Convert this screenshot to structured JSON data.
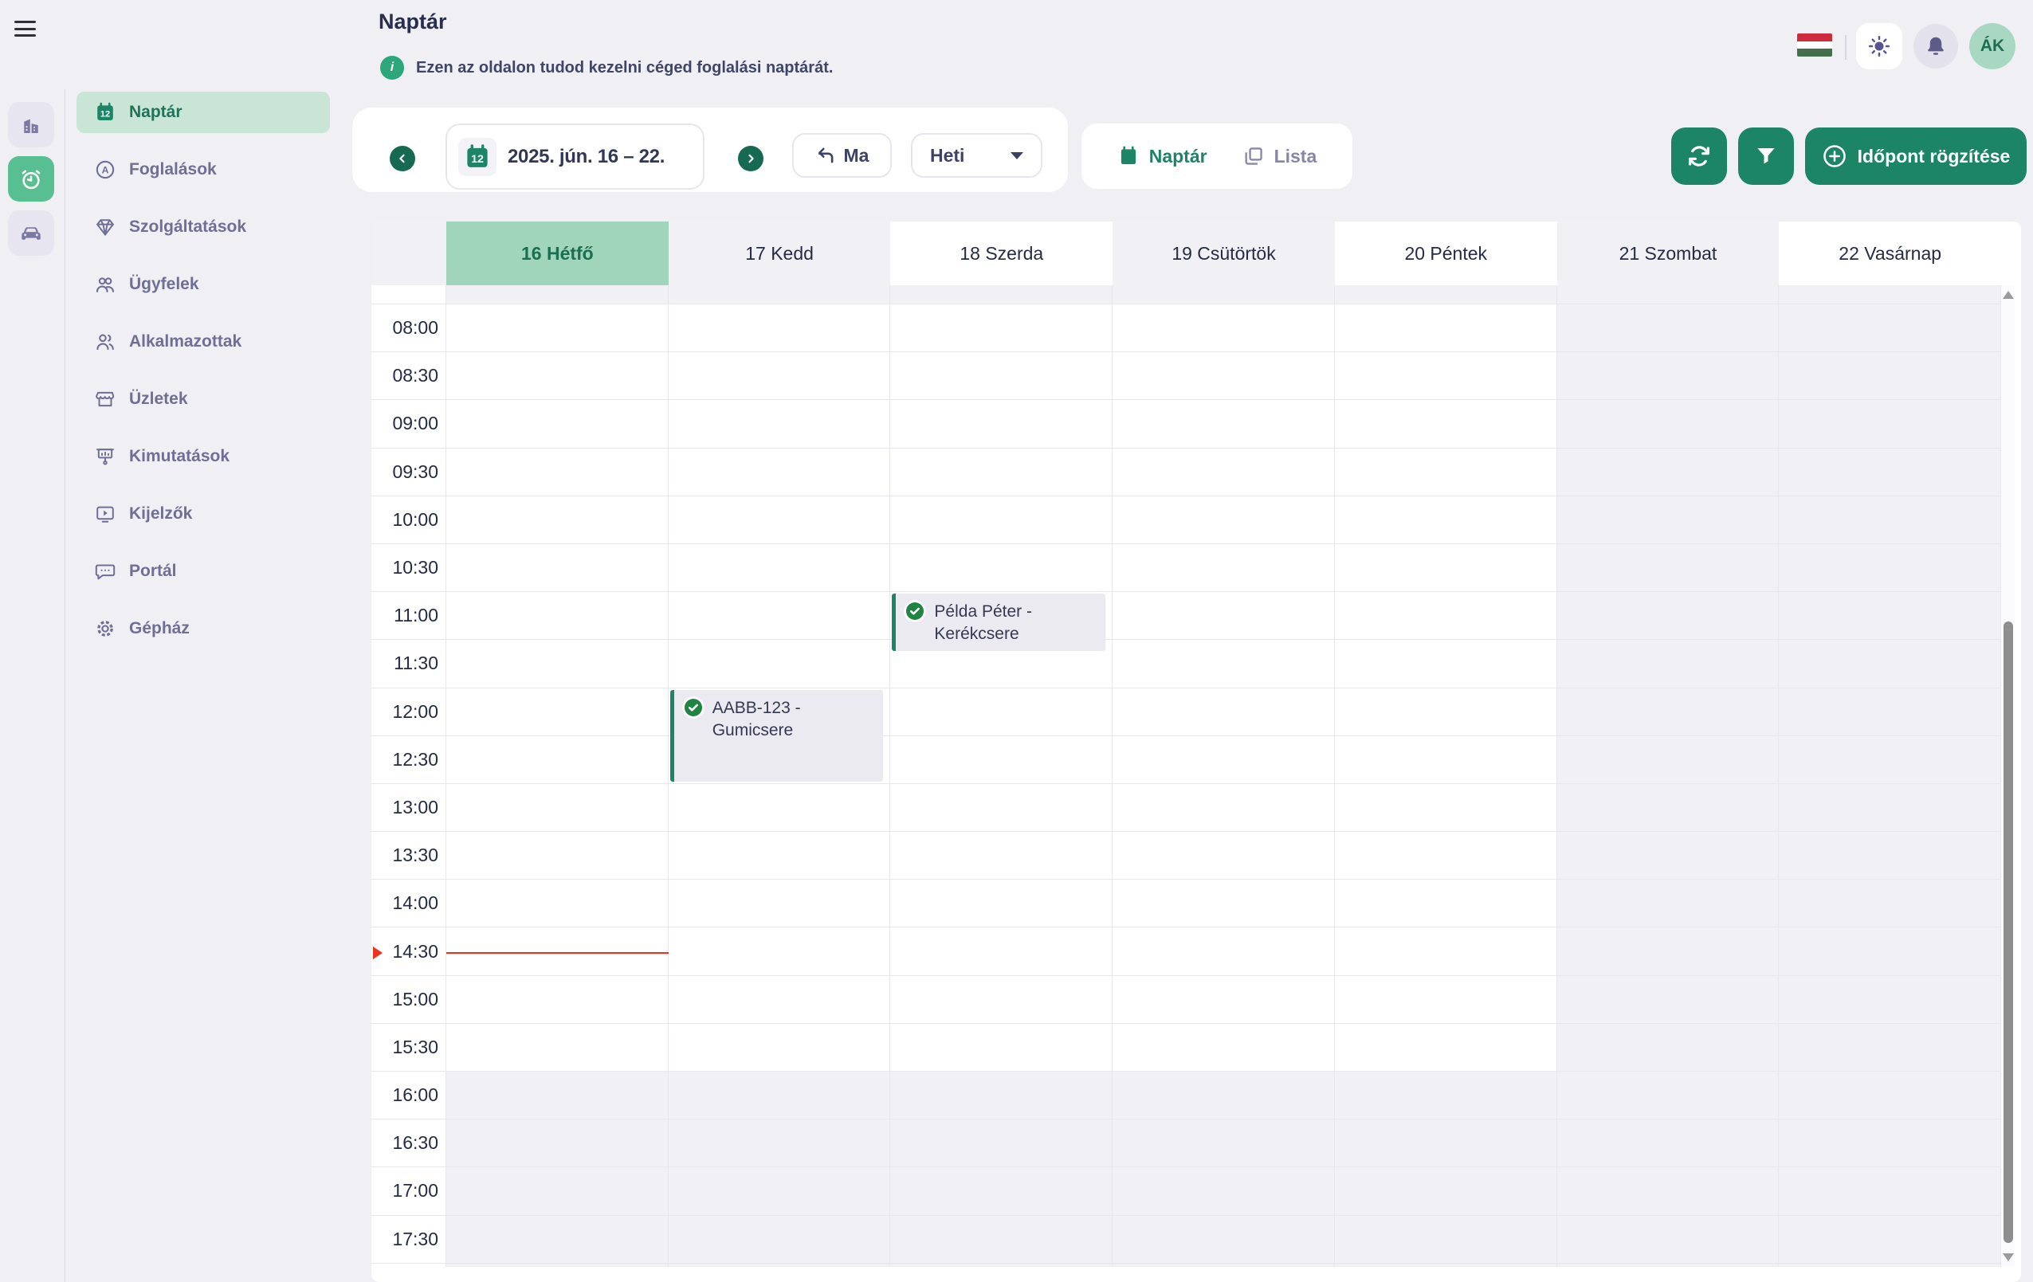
{
  "icons": {
    "calendar_day": "12",
    "bookings_letter": "A",
    "info_glyph": "i"
  },
  "header": {
    "title": "Naptár",
    "info_text": "Ezen az oldalon tudod kezelni céged foglalási naptárát."
  },
  "topbar": {
    "avatar_initials": "ÁK"
  },
  "rail": {
    "items": [
      {
        "icon": "buildings"
      },
      {
        "icon": "alarm-clock",
        "active": true
      },
      {
        "icon": "car"
      }
    ]
  },
  "sidebar": {
    "items": [
      {
        "label": "Naptár",
        "icon": "calendar",
        "active": true
      },
      {
        "label": "Foglalások",
        "icon": "circle-a"
      },
      {
        "label": "Szolgáltatások",
        "icon": "gem"
      },
      {
        "label": "Ügyfelek",
        "icon": "users-group"
      },
      {
        "label": "Alkalmazottak",
        "icon": "users"
      },
      {
        "label": "Üzletek",
        "icon": "store"
      },
      {
        "label": "Kimutatások",
        "icon": "presentation"
      },
      {
        "label": "Kijelzők",
        "icon": "display"
      },
      {
        "label": "Portál",
        "icon": "chat"
      },
      {
        "label": "Gépház",
        "icon": "gear"
      }
    ]
  },
  "toolbar": {
    "date_range": "2025. jún. 16 – 22.",
    "today_label": "Ma",
    "view_selected": "Heti",
    "view_calendar_label": "Naptár",
    "view_list_label": "Lista",
    "cta_label": "Időpont rögzítése"
  },
  "calendar": {
    "days": [
      {
        "label": "16 Hétfő",
        "today": true
      },
      {
        "label": "17 Kedd"
      },
      {
        "label": "18 Szerda"
      },
      {
        "label": "19 Csütörtök"
      },
      {
        "label": "20 Péntek"
      },
      {
        "label": "21 Szombat",
        "closed": true
      },
      {
        "label": "22 Vasárnap",
        "closed": true
      }
    ],
    "times": [
      "08:00",
      "08:30",
      "09:00",
      "09:30",
      "10:00",
      "10:30",
      "11:00",
      "11:30",
      "12:00",
      "12:30",
      "13:00",
      "13:30",
      "14:00",
      "14:30",
      "15:00",
      "15:30",
      "16:00",
      "16:30",
      "17:00",
      "17:30"
    ],
    "closed_from_row": 16,
    "events": [
      {
        "title": "Példa Péter - Kerékcsere",
        "day_index": 2,
        "row_index": 6,
        "span": 1
      },
      {
        "title": "AABB-123 - Gumicsere",
        "day_index": 1,
        "row_index": 8,
        "span": 2
      }
    ],
    "now": {
      "day_index": 0,
      "row_index": 13,
      "fraction": 0.5
    }
  },
  "colors": {
    "accent": "#1b8565",
    "today_header": "#a0d5bb",
    "now_red": "#f0301f"
  }
}
